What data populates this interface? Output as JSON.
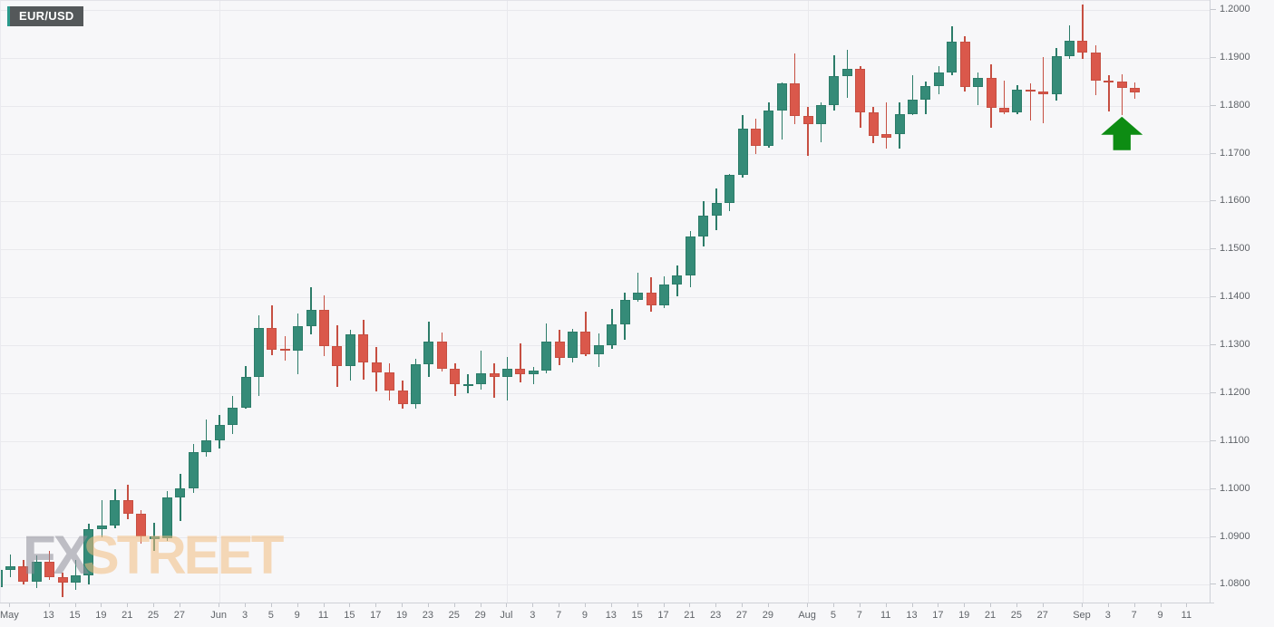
{
  "symbol_badge": {
    "label": "EUR/USD"
  },
  "watermark": {
    "fx": "FX",
    "street": "STREET"
  },
  "colors": {
    "background": "#f7f7f9",
    "up_fill": "#358b78",
    "up_border": "#2c7c69",
    "down_fill": "#da584b",
    "down_border": "#c64f42",
    "grid": "#e9e9ed",
    "axis_line": "#ced1d7",
    "axis_label": "#5f6368",
    "arrow_green": "#0d8c13",
    "badge_bg": "#54585a",
    "badge_accent": "#2b9a8c",
    "watermark_gray": "#8f8e99",
    "watermark_orange": "#f3bd80"
  },
  "chart_data": {
    "type": "candlestick",
    "title": "EUR/USD",
    "pair": "EUR/USD",
    "grid": true,
    "y_axis": {
      "side": "right",
      "ticks": [
        "1.0800",
        "1.0900",
        "1.1000",
        "1.1100",
        "1.1200",
        "1.1300",
        "1.1400",
        "1.1500",
        "1.1600",
        "1.1700",
        "1.1800",
        "1.1900",
        "1.2000"
      ],
      "tick_values": [
        1.08,
        1.09,
        1.1,
        1.11,
        1.12,
        1.13,
        1.14,
        1.15,
        1.16,
        1.17,
        1.18,
        1.19,
        1.2
      ]
    },
    "ylim": [
      1.0761,
      1.2019
    ],
    "x_axis": {
      "tick_format": "[label, candle_slot_index]",
      "ticks": [
        [
          "May",
          1
        ],
        [
          "13",
          4
        ],
        [
          "15",
          6
        ],
        [
          "19",
          8
        ],
        [
          "21",
          10
        ],
        [
          "25",
          12
        ],
        [
          "27",
          14
        ],
        [
          "Jun",
          17
        ],
        [
          "3",
          19
        ],
        [
          "5",
          21
        ],
        [
          "9",
          23
        ],
        [
          "11",
          25
        ],
        [
          "15",
          27
        ],
        [
          "17",
          29
        ],
        [
          "19",
          31
        ],
        [
          "23",
          33
        ],
        [
          "25",
          35
        ],
        [
          "29",
          37
        ],
        [
          "Jul",
          39
        ],
        [
          "3",
          41
        ],
        [
          "7",
          43
        ],
        [
          "9",
          45
        ],
        [
          "13",
          47
        ],
        [
          "15",
          49
        ],
        [
          "17",
          51
        ],
        [
          "21",
          53
        ],
        [
          "23",
          55
        ],
        [
          "27",
          57
        ],
        [
          "29",
          59
        ],
        [
          "Aug",
          62
        ],
        [
          "5",
          64
        ],
        [
          "7",
          66
        ],
        [
          "11",
          68
        ],
        [
          "13",
          70
        ],
        [
          "17",
          72
        ],
        [
          "19",
          74
        ],
        [
          "21",
          76
        ],
        [
          "25",
          78
        ],
        [
          "27",
          80
        ],
        [
          "Sep",
          83
        ],
        [
          "3",
          85
        ],
        [
          "7",
          87
        ],
        [
          "9",
          89
        ],
        [
          "11",
          91
        ]
      ],
      "month_gridline_indices": [
        17,
        39,
        62,
        83
      ],
      "total_slots": 92.5
    },
    "candle_format": [
      "date",
      "open",
      "high",
      "low",
      "close"
    ],
    "candles": [
      [
        "May 7",
        1.0795,
        1.0835,
        1.0767,
        1.0831
      ],
      [
        "May 8",
        1.0831,
        1.0864,
        1.0815,
        1.0839
      ],
      [
        "May 11",
        1.0839,
        1.0851,
        1.0801,
        1.0807
      ],
      [
        "May 12",
        1.0807,
        1.0862,
        1.0794,
        1.0848
      ],
      [
        "May 13",
        1.0848,
        1.087,
        1.081,
        1.0815
      ],
      [
        "May 14",
        1.0815,
        1.0825,
        1.0774,
        1.0805
      ],
      [
        "May 15",
        1.0805,
        1.0851,
        1.0789,
        1.082
      ],
      [
        "May 18",
        1.082,
        1.0927,
        1.08,
        1.0917
      ],
      [
        "May 19",
        1.0917,
        1.0976,
        1.0899,
        1.0924
      ],
      [
        "May 20",
        1.0924,
        1.0999,
        1.0918,
        1.0977
      ],
      [
        "May 21",
        1.0977,
        1.1008,
        1.0936,
        1.0949
      ],
      [
        "May 22",
        1.0949,
        1.0955,
        1.0885,
        1.0901
      ],
      [
        "May 25",
        1.0896,
        1.0929,
        1.087,
        1.0901
      ],
      [
        "May 26",
        1.0897,
        1.0996,
        1.0891,
        1.0983
      ],
      [
        "May 27",
        1.0983,
        1.1031,
        1.0934,
        1.1002
      ],
      [
        "May 28",
        1.1002,
        1.1093,
        1.0992,
        1.1076
      ],
      [
        "May 29",
        1.1076,
        1.1145,
        1.1068,
        1.1101
      ],
      [
        "Jun 1",
        1.1101,
        1.1154,
        1.1084,
        1.1134
      ],
      [
        "Jun 2",
        1.1134,
        1.1195,
        1.1115,
        1.117
      ],
      [
        "Jun 3",
        1.117,
        1.1257,
        1.1167,
        1.1233
      ],
      [
        "Jun 4",
        1.1233,
        1.1362,
        1.1194,
        1.1337
      ],
      [
        "Jun 5",
        1.1337,
        1.1384,
        1.1279,
        1.129
      ],
      [
        "Jun 8",
        1.1292,
        1.132,
        1.1268,
        1.1288
      ],
      [
        "Jun 9",
        1.1288,
        1.1366,
        1.124,
        1.134
      ],
      [
        "Jun 10",
        1.134,
        1.1422,
        1.1322,
        1.1373
      ],
      [
        "Jun 11",
        1.1373,
        1.1404,
        1.1277,
        1.1298
      ],
      [
        "Jun 12",
        1.1298,
        1.1341,
        1.1213,
        1.1256
      ],
      [
        "Jun 15",
        1.1256,
        1.1333,
        1.1227,
        1.1323
      ],
      [
        "Jun 16",
        1.1323,
        1.1353,
        1.1228,
        1.1264
      ],
      [
        "Jun 17",
        1.1264,
        1.1296,
        1.1204,
        1.1244
      ],
      [
        "Jun 18",
        1.1244,
        1.1262,
        1.1185,
        1.1205
      ],
      [
        "Jun 19",
        1.1205,
        1.1227,
        1.1168,
        1.1177
      ],
      [
        "Jun 22",
        1.1177,
        1.1271,
        1.1168,
        1.1261
      ],
      [
        "Jun 23",
        1.1261,
        1.1349,
        1.1233,
        1.1308
      ],
      [
        "Jun 24",
        1.1308,
        1.1326,
        1.1245,
        1.1251
      ],
      [
        "Jun 25",
        1.1251,
        1.1262,
        1.1194,
        1.1218
      ],
      [
        "Jun 26",
        1.1218,
        1.1239,
        1.12,
        1.1219
      ],
      [
        "Jun 29",
        1.1219,
        1.1288,
        1.1208,
        1.1242
      ],
      [
        "Jun 30",
        1.1242,
        1.1262,
        1.1191,
        1.1234
      ],
      [
        "Jul 1",
        1.1234,
        1.1276,
        1.1185,
        1.1251
      ],
      [
        "Jul 2",
        1.1251,
        1.1303,
        1.1223,
        1.1239
      ],
      [
        "Jul 3",
        1.1239,
        1.1254,
        1.1218,
        1.1248
      ],
      [
        "Jul 6",
        1.1248,
        1.1346,
        1.1241,
        1.1308
      ],
      [
        "Jul 7",
        1.1308,
        1.1333,
        1.1259,
        1.1274
      ],
      [
        "Jul 8",
        1.1274,
        1.1334,
        1.1265,
        1.1329
      ],
      [
        "Jul 9",
        1.1329,
        1.1371,
        1.1277,
        1.1282
      ],
      [
        "Jul 10",
        1.1282,
        1.1325,
        1.1254,
        1.13
      ],
      [
        "Jul 13",
        1.13,
        1.1375,
        1.1292,
        1.1343
      ],
      [
        "Jul 14",
        1.1343,
        1.1409,
        1.1312,
        1.1395
      ],
      [
        "Jul 15",
        1.1395,
        1.1452,
        1.139,
        1.141
      ],
      [
        "Jul 16",
        1.141,
        1.1442,
        1.1371,
        1.1384
      ],
      [
        "Jul 17",
        1.1384,
        1.1444,
        1.1377,
        1.1427
      ],
      [
        "Jul 20",
        1.1427,
        1.1467,
        1.1402,
        1.1446
      ],
      [
        "Jul 21",
        1.1446,
        1.1539,
        1.1422,
        1.1527
      ],
      [
        "Jul 22",
        1.1527,
        1.1601,
        1.1507,
        1.157
      ],
      [
        "Jul 23",
        1.157,
        1.1627,
        1.154,
        1.1598
      ],
      [
        "Jul 24",
        1.1598,
        1.1658,
        1.158,
        1.1655
      ],
      [
        "Jul 27",
        1.1655,
        1.1781,
        1.165,
        1.1752
      ],
      [
        "Jul 28",
        1.1752,
        1.1773,
        1.17,
        1.1716
      ],
      [
        "Jul 29",
        1.1716,
        1.1807,
        1.1712,
        1.179
      ],
      [
        "Jul 30",
        1.179,
        1.1848,
        1.1729,
        1.1846
      ],
      [
        "Jul 31",
        1.1846,
        1.1909,
        1.1762,
        1.1778
      ],
      [
        "Aug 3",
        1.1778,
        1.1797,
        1.1695,
        1.1762
      ],
      [
        "Aug 4",
        1.1762,
        1.1807,
        1.1723,
        1.1802
      ],
      [
        "Aug 5",
        1.1802,
        1.1905,
        1.179,
        1.1862
      ],
      [
        "Aug 6",
        1.1862,
        1.1916,
        1.1817,
        1.1878
      ],
      [
        "Aug 7",
        1.1878,
        1.1883,
        1.1754,
        1.1787
      ],
      [
        "Aug 10",
        1.1787,
        1.1798,
        1.1722,
        1.1738
      ],
      [
        "Aug 11",
        1.1741,
        1.1808,
        1.1711,
        1.1734
      ],
      [
        "Aug 12",
        1.174,
        1.1807,
        1.171,
        1.1783
      ],
      [
        "Aug 13",
        1.1783,
        1.1864,
        1.178,
        1.1813
      ],
      [
        "Aug 14",
        1.1813,
        1.1851,
        1.1782,
        1.1842
      ],
      [
        "Aug 17",
        1.1842,
        1.1882,
        1.1825,
        1.187
      ],
      [
        "Aug 18",
        1.187,
        1.1966,
        1.1863,
        1.1934
      ],
      [
        "Aug 19",
        1.1934,
        1.1946,
        1.183,
        1.1839
      ],
      [
        "Aug 20",
        1.1839,
        1.1869,
        1.1801,
        1.1859
      ],
      [
        "Aug 21",
        1.1859,
        1.1886,
        1.1754,
        1.1796
      ],
      [
        "Aug 24",
        1.1796,
        1.1852,
        1.1782,
        1.1786
      ],
      [
        "Aug 25",
        1.1786,
        1.1843,
        1.1783,
        1.1834
      ],
      [
        "Aug 26",
        1.1834,
        1.1846,
        1.177,
        1.183
      ],
      [
        "Aug 27",
        1.183,
        1.1902,
        1.1763,
        1.1824
      ],
      [
        "Aug 28",
        1.1824,
        1.192,
        1.181,
        1.1903
      ],
      [
        "Aug 31",
        1.1903,
        1.1967,
        1.1898,
        1.1936
      ],
      [
        "Sep 1",
        1.1936,
        1.2011,
        1.1897,
        1.1911
      ],
      [
        "Sep 2",
        1.1911,
        1.1927,
        1.1823,
        1.1853
      ],
      [
        "Sep 3",
        1.1853,
        1.1864,
        1.1789,
        1.185
      ],
      [
        "Sep 4",
        1.185,
        1.1865,
        1.1781,
        1.1838
      ],
      [
        "Sep 7",
        1.1838,
        1.1849,
        1.1815,
        1.1828
      ]
    ],
    "annotation": {
      "icon": "up-arrow-icon",
      "shape": "block-arrow-up",
      "candle_index": 86,
      "candle_date": "Sep 4",
      "anchor_price": 1.1781,
      "color": "#0d8c13"
    }
  }
}
